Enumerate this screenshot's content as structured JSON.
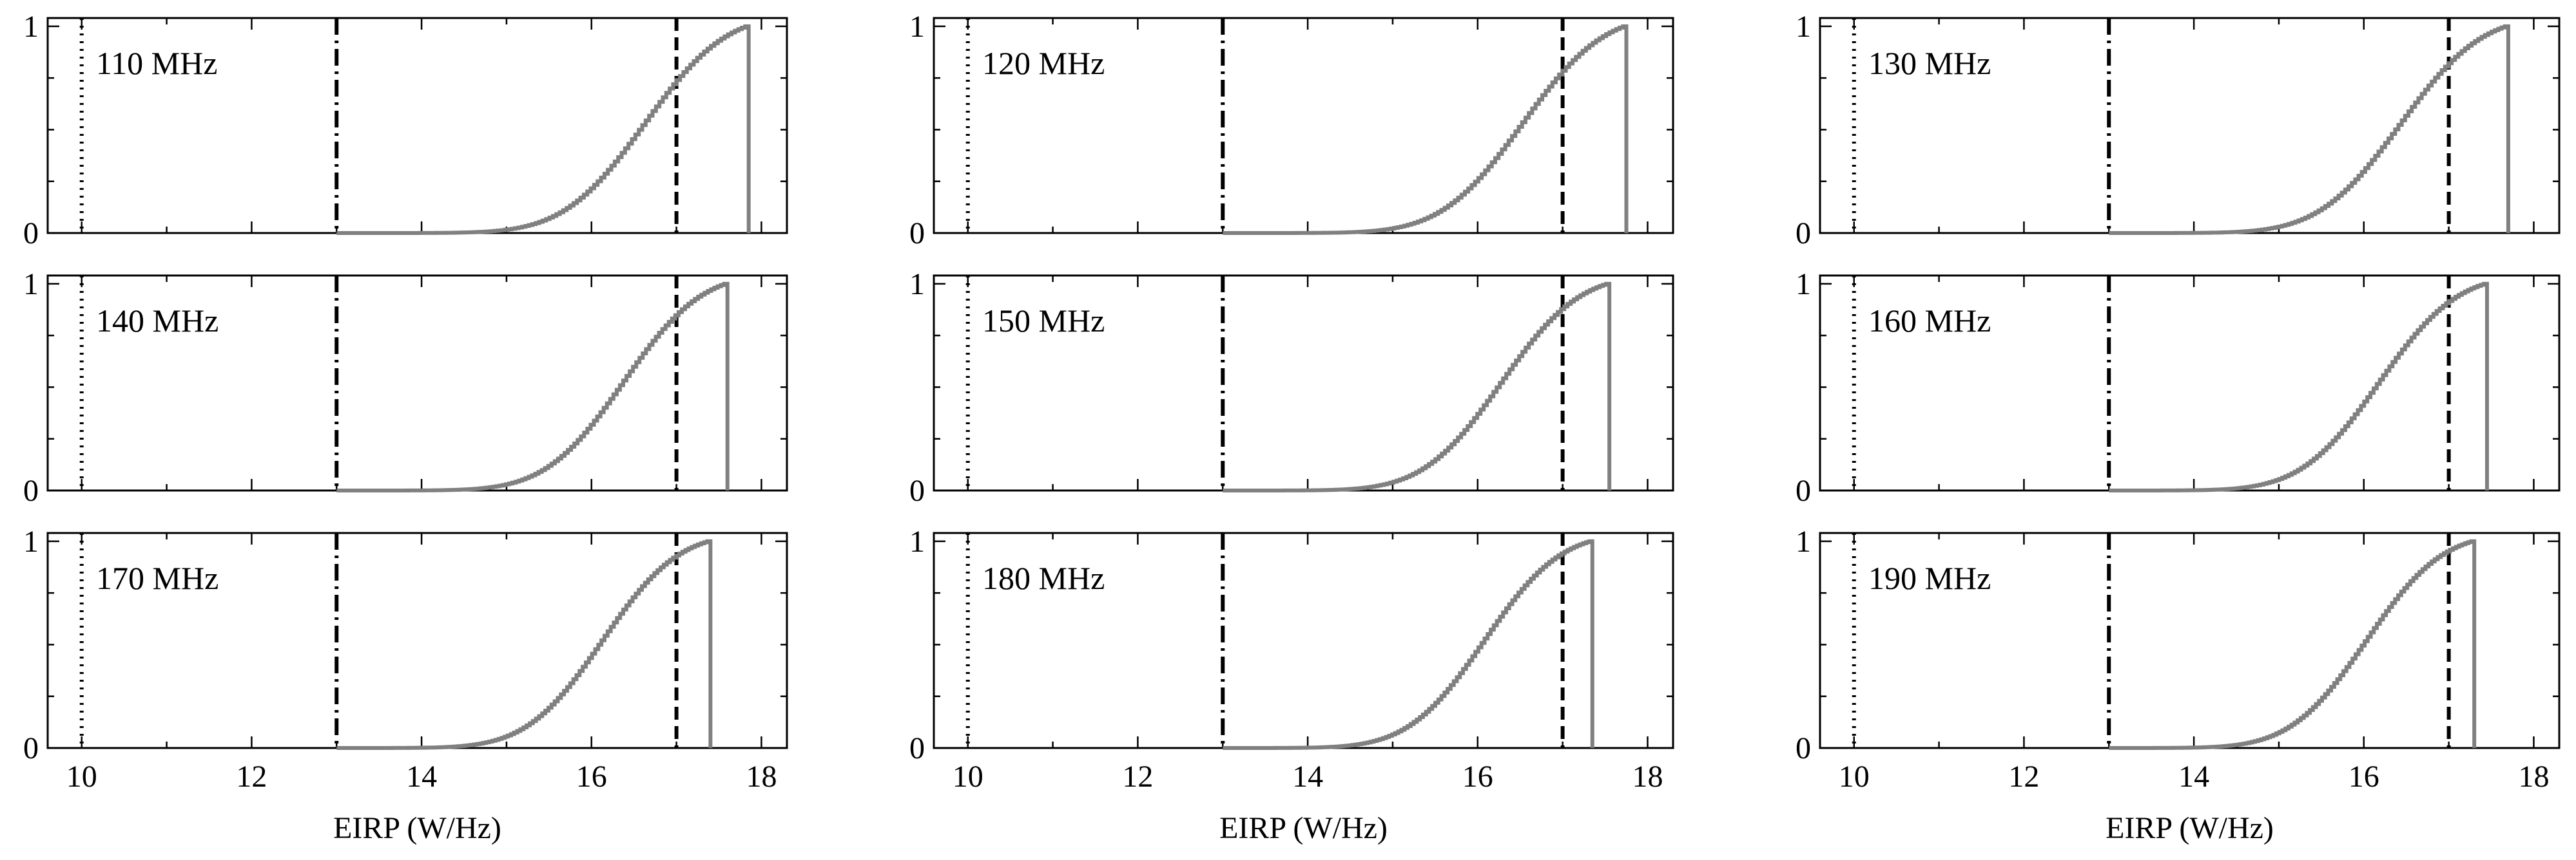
{
  "figure": {
    "xlabel": "EIRP (W/Hz)"
  },
  "chart_data": {
    "type": "line",
    "style": "step",
    "layout": "3x3 grid of small multiples",
    "xlim": [
      9.6,
      18.3
    ],
    "ylim": [
      0,
      1.04
    ],
    "xticks": [
      10,
      12,
      14,
      16,
      18
    ],
    "xtick_labels": [
      "10",
      "12",
      "14",
      "16",
      "18"
    ],
    "yticks": [
      0,
      1
    ],
    "ytick_labels": [
      "0",
      "1"
    ],
    "xlabel": "EIRP (W/Hz)",
    "ylabel": "",
    "grid": false,
    "series_color": "#808080",
    "reference_lines": [
      {
        "x": 10,
        "style": "dotted",
        "color": "#000000"
      },
      {
        "x": 13,
        "style": "dashdot",
        "color": "#000000"
      },
      {
        "x": 17,
        "style": "dashed",
        "color": "#000000"
      }
    ],
    "panels": [
      {
        "label": "110 MHz",
        "median": 16.65,
        "spread": 0.75,
        "x_start": 13.0,
        "x_max": 17.85
      },
      {
        "label": "120 MHz",
        "median": 16.55,
        "spread": 0.75,
        "x_start": 13.0,
        "x_max": 17.75
      },
      {
        "label": "130 MHz",
        "median": 16.45,
        "spread": 0.75,
        "x_start": 13.0,
        "x_max": 17.7
      },
      {
        "label": "140 MHz",
        "median": 16.4,
        "spread": 0.72,
        "x_start": 13.0,
        "x_max": 17.6
      },
      {
        "label": "150 MHz",
        "median": 16.3,
        "spread": 0.72,
        "x_start": 13.0,
        "x_max": 17.55
      },
      {
        "label": "160 MHz",
        "median": 16.2,
        "spread": 0.72,
        "x_start": 13.0,
        "x_max": 17.45
      },
      {
        "label": "170 MHz",
        "median": 16.15,
        "spread": 0.7,
        "x_start": 13.0,
        "x_max": 17.4
      },
      {
        "label": "180 MHz",
        "median": 16.1,
        "spread": 0.7,
        "x_start": 13.0,
        "x_max": 17.35
      },
      {
        "label": "190 MHz",
        "median": 16.05,
        "spread": 0.7,
        "x_start": 13.0,
        "x_max": 17.3
      }
    ]
  }
}
